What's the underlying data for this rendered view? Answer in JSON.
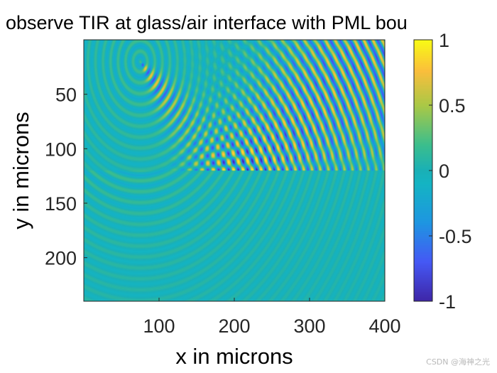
{
  "chart_data": {
    "type": "heatmap",
    "title": "observe TIR at glass/air interface with PML bou",
    "xlabel": "x in microns",
    "ylabel": "y in microns",
    "xlim": [
      0,
      400
    ],
    "ylim": [
      0,
      240
    ],
    "y_reversed": true,
    "xticks": [
      100,
      200,
      300,
      400
    ],
    "xtick_labels": [
      "100",
      "200",
      "300",
      "400"
    ],
    "yticks": [
      50,
      100,
      150,
      200
    ],
    "ytick_labels": [
      "50",
      "100",
      "150",
      "200"
    ],
    "colorbar": {
      "colormap": "parula",
      "clim": [
        -1,
        1
      ],
      "ticks": [
        1,
        0.5,
        0,
        -0.5,
        -1
      ],
      "tick_labels": [
        "1",
        "0.5",
        "0",
        "-0.5",
        "-1"
      ]
    },
    "field": {
      "description": "wave field from point source reflecting at interface",
      "source": [
        75,
        20
      ],
      "interface_y": 120
    }
  },
  "colors": {
    "low": "#3e26a8",
    "mid": "#1ab0b6",
    "high": "#f9fb15"
  },
  "watermark": "CSDN @海神之光"
}
